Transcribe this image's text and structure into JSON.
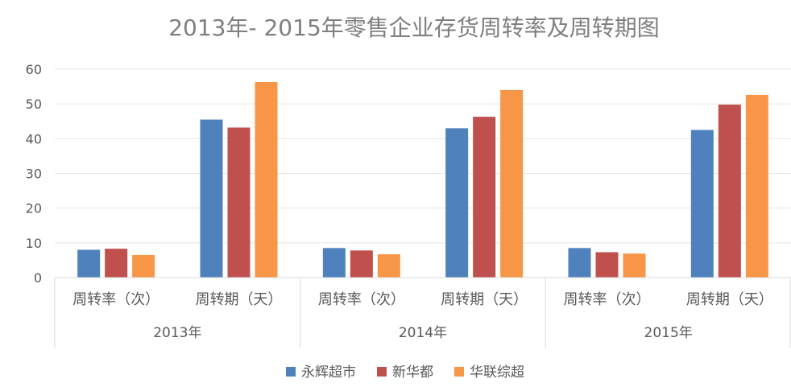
{
  "chart_data": {
    "type": "bar",
    "title": "2013年- 2015年零售企业存货周转率及周转期图",
    "xlabel": "",
    "ylabel": "",
    "ylim": [
      0,
      60
    ],
    "yticks": [
      0,
      10,
      20,
      30,
      40,
      50,
      60
    ],
    "grid": true,
    "legend_position": "bottom",
    "groups": [
      {
        "label": "2013年",
        "categories": [
          "周转率（次）",
          "周转期（天）"
        ]
      },
      {
        "label": "2014年",
        "categories": [
          "周转率（次）",
          "周转期（天）"
        ]
      },
      {
        "label": "2015年",
        "categories": [
          "周转率（次）",
          "周转期（天）"
        ]
      }
    ],
    "series": [
      {
        "name": "永辉超市",
        "color": "#4F81BD",
        "values": [
          8.0,
          45.5,
          8.5,
          43.0,
          8.5,
          42.5
        ]
      },
      {
        "name": "新华都",
        "color": "#C0504D",
        "values": [
          8.3,
          43.2,
          7.8,
          46.3,
          7.3,
          49.8
        ]
      },
      {
        "name": "华联综超",
        "color": "#F79646",
        "values": [
          6.5,
          56.3,
          6.7,
          54.0,
          6.9,
          52.6
        ]
      }
    ]
  }
}
